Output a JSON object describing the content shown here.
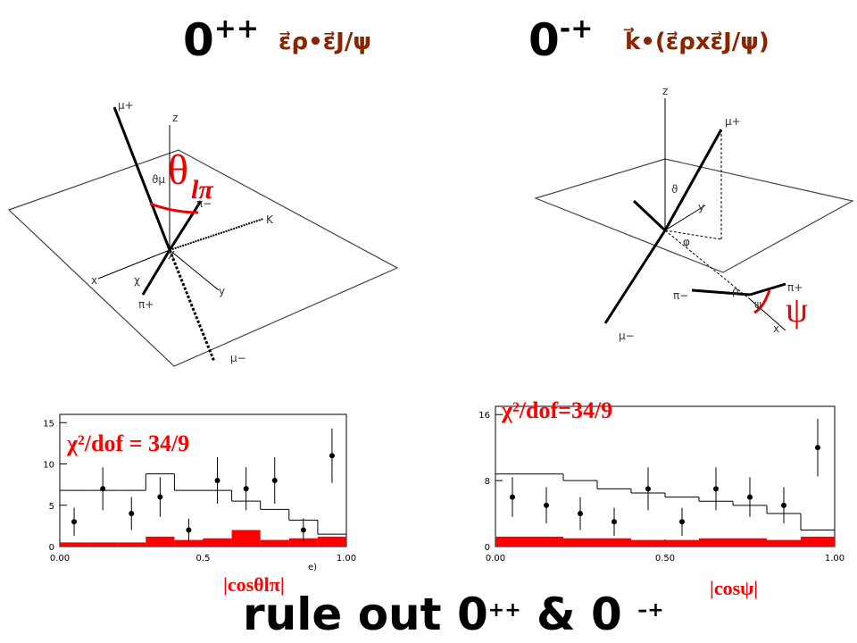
{
  "slide": {
    "left_title": {
      "base": "0",
      "sup": "++"
    },
    "left_formula": "ε⃗ρ•ε⃗J/ψ",
    "right_title": {
      "base": "0",
      "sup": "-+"
    },
    "right_formula": "k⃗•(ε⃗ρxε⃗J/ψ)",
    "conclusion": {
      "text": "rule out 0",
      "sup1": "++",
      "mid": " & 0 ",
      "sup2": "–+"
    }
  },
  "diagrams": {
    "left": {
      "theta": "θ",
      "theta_sub": "lπ",
      "labels": [
        "μ+",
        "ϑμ",
        "π−",
        "K",
        "X",
        "χ",
        "x",
        "y",
        "z",
        "π+",
        "μ−"
      ]
    },
    "right": {
      "psi": "ψ",
      "labels": [
        "z",
        "μ+",
        "ϑ",
        "y",
        "φ",
        "ρ",
        "π−",
        "π+",
        "ψ",
        "x",
        "μ−"
      ]
    }
  },
  "chart_data": [
    {
      "type": "histogram",
      "annotation": "χ²/dof = 34/9",
      "x_label": "|cosθlπ|",
      "panel_label": "e)",
      "bins": [
        0,
        0.1,
        0.2,
        0.3,
        0.4,
        0.5,
        0.6,
        0.7,
        0.8,
        0.9,
        1.0
      ],
      "values": [
        3,
        7,
        4,
        6,
        2,
        8,
        7,
        8,
        2,
        11
      ],
      "errors": [
        1.7,
        2.6,
        2,
        2.4,
        1.4,
        2.8,
        2.6,
        2.8,
        1.4,
        3.3
      ],
      "mc_values": [
        6.8,
        6.8,
        6.8,
        8.8,
        6.8,
        6.8,
        5.5,
        4.5,
        3.2,
        1.5
      ],
      "background_values": [
        0.5,
        0.5,
        0.5,
        1.2,
        0.8,
        1.0,
        2.0,
        0.8,
        1.0,
        1.2
      ],
      "point_color": "#000000",
      "mc_color": "#000000",
      "background_color": "#ff0000",
      "xlim": [
        0,
        1
      ],
      "xticks": [
        {
          "value": 0,
          "label": "0.00"
        },
        0.5,
        {
          "value": 1,
          "label": "1.00"
        }
      ],
      "ylim": [
        0,
        16
      ],
      "yticks": [
        0,
        5,
        10,
        15
      ]
    },
    {
      "type": "histogram",
      "annotation": "χ²/dof=34/9",
      "x_label": "|cosψ|",
      "bins": [
        0,
        0.1,
        0.2,
        0.3,
        0.4,
        0.5,
        0.6,
        0.7,
        0.8,
        0.9,
        1.0
      ],
      "values": [
        6,
        5,
        4,
        3,
        7,
        3,
        7,
        6,
        5,
        12
      ],
      "errors": [
        2.4,
        2.2,
        2,
        1.7,
        2.6,
        1.7,
        2.6,
        2.4,
        2.2,
        3.5
      ],
      "mc_values": [
        8.8,
        8.8,
        8.0,
        7.0,
        6.5,
        6.0,
        5.5,
        5.0,
        4.0,
        2.0
      ],
      "background_values": [
        1.2,
        1.2,
        1.0,
        1.0,
        0.8,
        0.8,
        1.0,
        1.0,
        0.8,
        1.2
      ],
      "point_color": "#000000",
      "mc_color": "#000000",
      "background_color": "#ff0000",
      "xlim": [
        0,
        1
      ],
      "xticks": [
        {
          "value": 0,
          "label": "0.00"
        },
        {
          "value": 0.5,
          "label": "0.50"
        },
        {
          "value": 1,
          "label": "1.00"
        }
      ],
      "ylim": [
        0,
        17
      ],
      "yticks": [
        0,
        8,
        16
      ]
    }
  ]
}
